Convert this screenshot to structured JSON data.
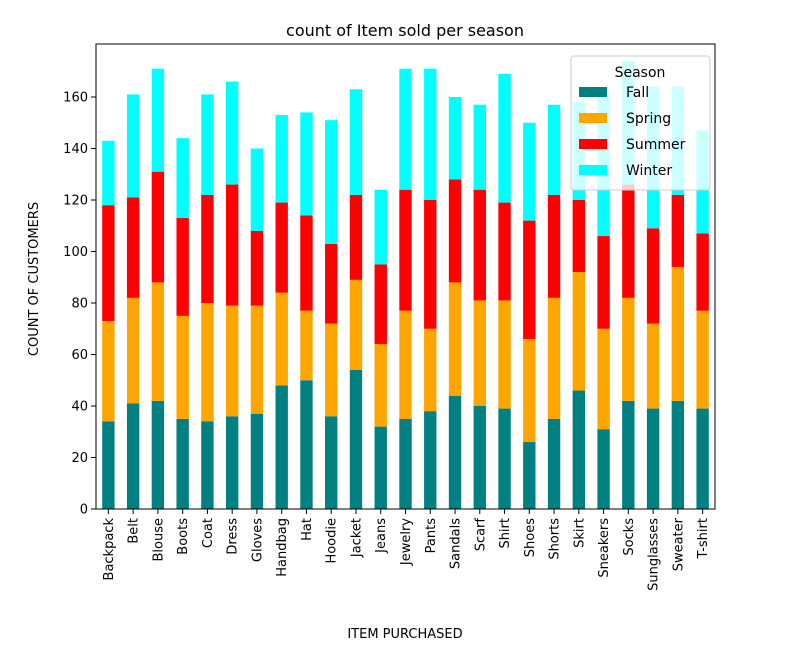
{
  "chart_data": {
    "type": "bar",
    "stacked": true,
    "title": "count of Item sold per season",
    "xlabel": "ITEM PURCHASED",
    "ylabel": "COUNT OF CUSTOMERS",
    "ylim": [
      0,
      175
    ],
    "yticks": [
      0,
      20,
      40,
      60,
      80,
      100,
      120,
      140,
      160
    ],
    "grid": false,
    "legend": {
      "title": "Season",
      "placement": "top-right"
    },
    "categories": [
      "Backpack",
      "Belt",
      "Blouse",
      "Boots",
      "Coat",
      "Dress",
      "Gloves",
      "Handbag",
      "Hat",
      "Hoodie",
      "Jacket",
      "Jeans",
      "Jewelry",
      "Pants",
      "Sandals",
      "Scarf",
      "Shirt",
      "Shoes",
      "Shorts",
      "Skirt",
      "Sneakers",
      "Socks",
      "Sunglasses",
      "Sweater",
      "T-shirt"
    ],
    "series": [
      {
        "name": "Fall",
        "color": "#008080",
        "values": [
          34,
          41,
          42,
          35,
          34,
          36,
          37,
          48,
          50,
          36,
          54,
          32,
          35,
          38,
          44,
          40,
          39,
          26,
          35,
          46,
          31,
          42,
          39,
          42,
          39
        ]
      },
      {
        "name": "Spring",
        "color": "#ffa500",
        "values": [
          39,
          41,
          46,
          40,
          46,
          43,
          42,
          36,
          27,
          36,
          35,
          32,
          42,
          32,
          44,
          41,
          42,
          40,
          47,
          46,
          39,
          40,
          33,
          52,
          38
        ]
      },
      {
        "name": "Summer",
        "color": "#ff0000",
        "values": [
          45,
          39,
          43,
          38,
          42,
          47,
          29,
          35,
          37,
          31,
          33,
          31,
          47,
          50,
          40,
          43,
          38,
          46,
          40,
          28,
          36,
          44,
          37,
          28,
          30
        ]
      },
      {
        "name": "Winter",
        "color": "#00ffff",
        "values": [
          25,
          40,
          40,
          31,
          39,
          40,
          32,
          34,
          40,
          48,
          41,
          29,
          47,
          51,
          32,
          33,
          50,
          38,
          35,
          38,
          55,
          48,
          55,
          42,
          40
        ]
      }
    ]
  }
}
